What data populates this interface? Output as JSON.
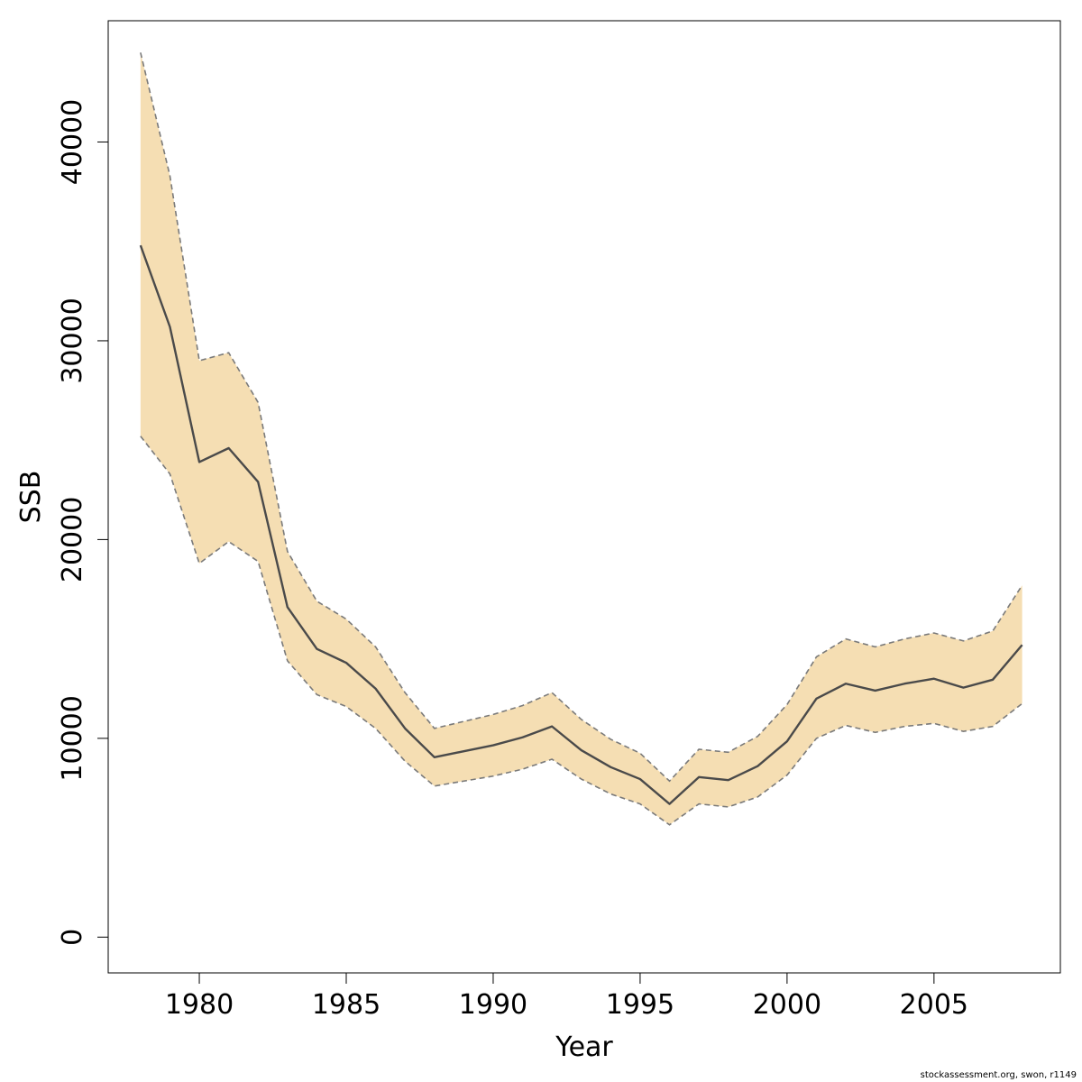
{
  "chart_data": {
    "type": "line",
    "xlabel": "Year",
    "ylabel": "SSB",
    "xlim": [
      1976.9,
      2009.3
    ],
    "ylim": [
      -1800,
      46100
    ],
    "xticks": [
      1980,
      1985,
      1990,
      1995,
      2000,
      2005
    ],
    "yticks": [
      0,
      10000,
      20000,
      30000,
      40000
    ],
    "grid": false,
    "x": [
      1978,
      1979,
      1980,
      1981,
      1982,
      1983,
      1984,
      1985,
      1986,
      1987,
      1988,
      1989,
      1990,
      1991,
      1992,
      1993,
      1994,
      1995,
      1996,
      1997,
      1998,
      1999,
      2000,
      2001,
      2002,
      2003,
      2004,
      2005,
      2006,
      2007,
      2008
    ],
    "series": [
      {
        "values": [
          34800,
          30700,
          23900,
          24600,
          22900,
          16600,
          14500,
          13800,
          12500,
          10500,
          9050,
          9350,
          9650,
          10050,
          10600,
          9400,
          8550,
          7950,
          6700,
          8050,
          7900,
          8600,
          9850,
          12000,
          12750,
          12400,
          12750,
          13000,
          12550,
          12950,
          14700
        ],
        "lower": [
          25200,
          23300,
          18800,
          19900,
          18900,
          13900,
          12200,
          11600,
          10500,
          8850,
          7600,
          7850,
          8100,
          8450,
          8950,
          7950,
          7200,
          6700,
          5650,
          6700,
          6550,
          7050,
          8150,
          10000,
          10650,
          10300,
          10600,
          10750,
          10350,
          10600,
          11750
        ],
        "upper": [
          44500,
          38300,
          29000,
          29400,
          26900,
          19400,
          16900,
          16000,
          14600,
          12300,
          10500,
          10850,
          11200,
          11650,
          12300,
          10950,
          9950,
          9250,
          7850,
          9450,
          9300,
          10100,
          11700,
          14100,
          15000,
          14600,
          15000,
          15300,
          14900,
          15400,
          17700
        ],
        "line_color": "#4a4a4a",
        "band_color": "#f5deb3",
        "band_edge_color": "#7a7a7a"
      }
    ]
  },
  "footer": {
    "note": "stockassessment.org, swon, r1149"
  }
}
